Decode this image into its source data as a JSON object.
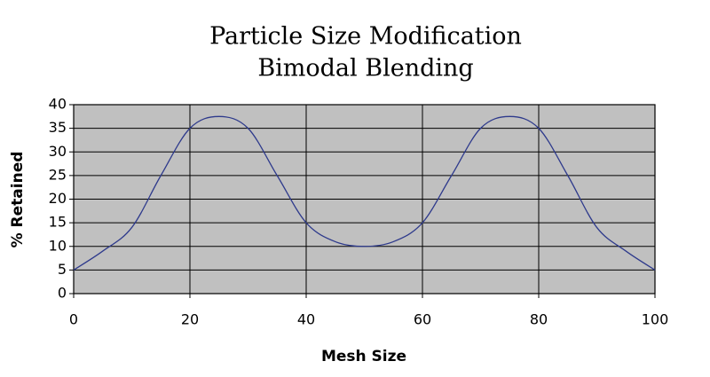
{
  "chart_data": {
    "type": "line",
    "title": "Particle Size Modification",
    "subtitle": "Bimodal Blending",
    "x_label": "Mesh Size",
    "y_label": "% Retained",
    "x": [
      0,
      5,
      10,
      15,
      20,
      25,
      30,
      35,
      40,
      45,
      50,
      55,
      60,
      65,
      70,
      75,
      80,
      85,
      90,
      95,
      100
    ],
    "series": [
      {
        "color": "#2e3a8c",
        "values": [
          5,
          9,
          14,
          25,
          35,
          37.5,
          35,
          25,
          15,
          11,
          10,
          11,
          15,
          25,
          35,
          37.5,
          35,
          25,
          14,
          9,
          5
        ]
      }
    ],
    "xlim": [
      0,
      100
    ],
    "xticks": [
      0,
      20,
      40,
      60,
      80,
      100
    ],
    "ylim": [
      0,
      40
    ],
    "yticks": [
      0,
      5,
      10,
      15,
      20,
      25,
      30,
      35,
      40
    ],
    "grid": true,
    "plot_background": "#c0c0c0"
  }
}
